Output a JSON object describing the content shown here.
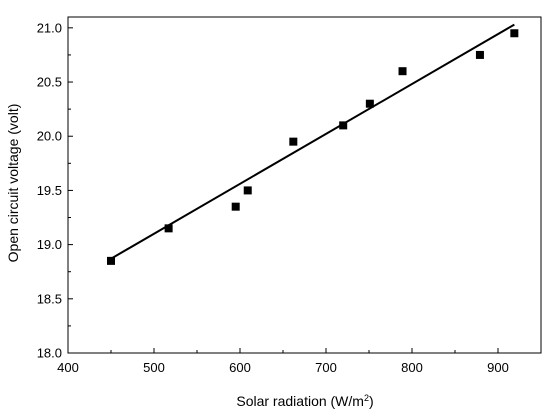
{
  "chart_data": {
    "type": "scatter",
    "title": "",
    "xlabel": "Solar radiation (W/m²)",
    "ylabel": "Open circuit  voltage (volt)",
    "xlim": [
      400,
      950
    ],
    "ylim": [
      18.0,
      21.1
    ],
    "x_ticks": [
      400,
      500,
      600,
      700,
      800,
      900
    ],
    "x_tick_labels": [
      "400",
      "500",
      "600",
      "700",
      "800",
      "900"
    ],
    "y_ticks": [
      18.0,
      18.5,
      19.0,
      19.5,
      20.0,
      20.5,
      21.0
    ],
    "y_tick_labels": [
      "18.0",
      "18.5",
      "19.0",
      "19.5",
      "20.0",
      "20.5",
      "21.0"
    ],
    "grid": false,
    "legend": "none",
    "series": [
      {
        "type": "scatter",
        "marker": "square",
        "color": "#000000",
        "points": [
          {
            "x": 450,
            "y": 18.85
          },
          {
            "x": 517,
            "y": 19.15
          },
          {
            "x": 595,
            "y": 19.35
          },
          {
            "x": 609,
            "y": 19.5
          },
          {
            "x": 662,
            "y": 19.95
          },
          {
            "x": 720,
            "y": 20.1
          },
          {
            "x": 751,
            "y": 20.3
          },
          {
            "x": 789,
            "y": 20.6
          },
          {
            "x": 879,
            "y": 20.75
          },
          {
            "x": 919,
            "y": 20.95
          }
        ]
      },
      {
        "type": "line",
        "color": "#000000",
        "points": [
          {
            "x": 450,
            "y": 18.87
          },
          {
            "x": 919,
            "y": 21.03
          }
        ]
      }
    ]
  }
}
